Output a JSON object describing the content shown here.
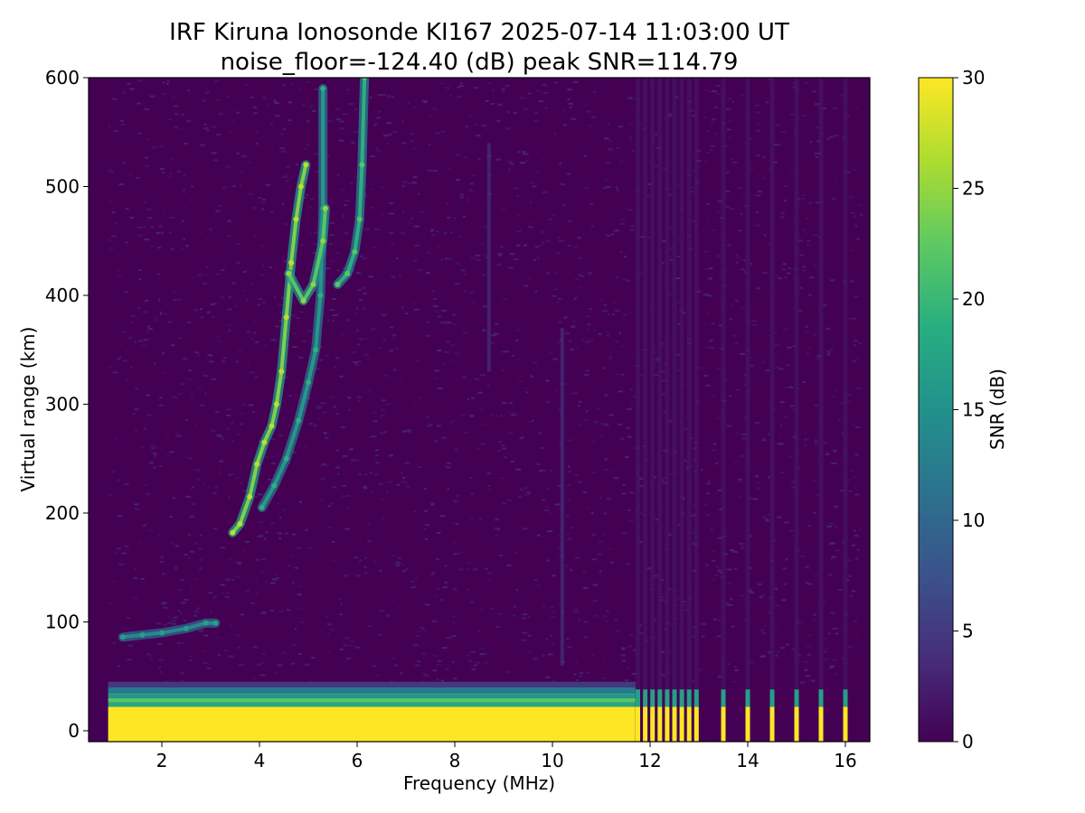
{
  "chart_data": {
    "type": "heatmap",
    "title": "IRF Kiruna Ionosonde KI167 2025-07-14 11:03:00  UT",
    "subtitle": "noise_floor=-124.40 (dB) peak SNR=114.79",
    "xlabel": "Frequency (MHz)",
    "ylabel": "Virtual range (km)",
    "xlim": [
      0.5,
      16.5
    ],
    "ylim": [
      -10,
      600
    ],
    "xticks": [
      "2",
      "4",
      "6",
      "8",
      "10",
      "12",
      "14",
      "16"
    ],
    "yticks": [
      "0",
      "100",
      "200",
      "300",
      "400",
      "500",
      "600"
    ],
    "colorbar": {
      "label": "SNR (dB)",
      "range": [
        0,
        30
      ],
      "ticks": [
        "0",
        "5",
        "10",
        "15",
        "20",
        "25",
        "30"
      ],
      "colormap": "viridis",
      "stops": [
        "#440154",
        "#472d7b",
        "#3b528b",
        "#2c728e",
        "#21918c",
        "#28ae80",
        "#5ec962",
        "#addc30",
        "#fde725"
      ]
    },
    "background_snr": 0,
    "data_freq_range_mhz": [
      0.9,
      16.3
    ],
    "ground_clutter": {
      "saturated_band_km": [
        -10,
        22
      ],
      "upper_edge_km": 45,
      "snr_db": 30,
      "continuous_until_mhz": 11.7,
      "pulsed_freqs_mhz": [
        11.75,
        11.9,
        12.05,
        12.2,
        12.35,
        12.5,
        12.65,
        12.8,
        12.95,
        13.5,
        14.0,
        14.5,
        15.0,
        15.5,
        16.0
      ]
    },
    "traces": [
      {
        "layer": "E",
        "points": [
          [
            1.2,
            86
          ],
          [
            1.6,
            88
          ],
          [
            2.0,
            90
          ],
          [
            2.5,
            94
          ],
          [
            2.9,
            99
          ],
          [
            3.1,
            99
          ]
        ],
        "snr_db": 14
      },
      {
        "layer": "F ordinary",
        "points": [
          [
            3.45,
            182
          ],
          [
            3.6,
            190
          ],
          [
            3.8,
            215
          ],
          [
            3.95,
            245
          ],
          [
            4.1,
            265
          ],
          [
            4.25,
            280
          ],
          [
            4.35,
            300
          ],
          [
            4.45,
            330
          ],
          [
            4.55,
            380
          ],
          [
            4.65,
            430
          ],
          [
            4.75,
            470
          ],
          [
            4.85,
            500
          ],
          [
            4.95,
            520
          ]
        ],
        "snr_db": 24
      },
      {
        "layer": "F extraordinary",
        "points": [
          [
            4.05,
            205
          ],
          [
            4.3,
            225
          ],
          [
            4.55,
            250
          ],
          [
            4.8,
            285
          ],
          [
            5.0,
            320
          ],
          [
            5.15,
            350
          ],
          [
            5.25,
            400
          ],
          [
            5.3,
            480
          ],
          [
            5.3,
            590
          ]
        ],
        "snr_db": 16
      },
      {
        "layer": "F echo cluster",
        "points": [
          [
            4.6,
            420
          ],
          [
            4.9,
            395
          ],
          [
            5.1,
            410
          ],
          [
            5.3,
            450
          ],
          [
            5.35,
            480
          ]
        ],
        "snr_db": 22
      },
      {
        "layer": "F2 cusp",
        "points": [
          [
            5.6,
            410
          ],
          [
            5.8,
            420
          ],
          [
            5.95,
            440
          ],
          [
            6.05,
            470
          ],
          [
            6.1,
            520
          ],
          [
            6.15,
            600
          ]
        ],
        "snr_db": 19
      }
    ],
    "weak_features": [
      {
        "freq_mhz": 8.7,
        "range_km": [
          330,
          540
        ],
        "snr_db": 4
      },
      {
        "freq_mhz": 10.2,
        "range_km": [
          60,
          370
        ],
        "snr_db": 4
      }
    ]
  }
}
